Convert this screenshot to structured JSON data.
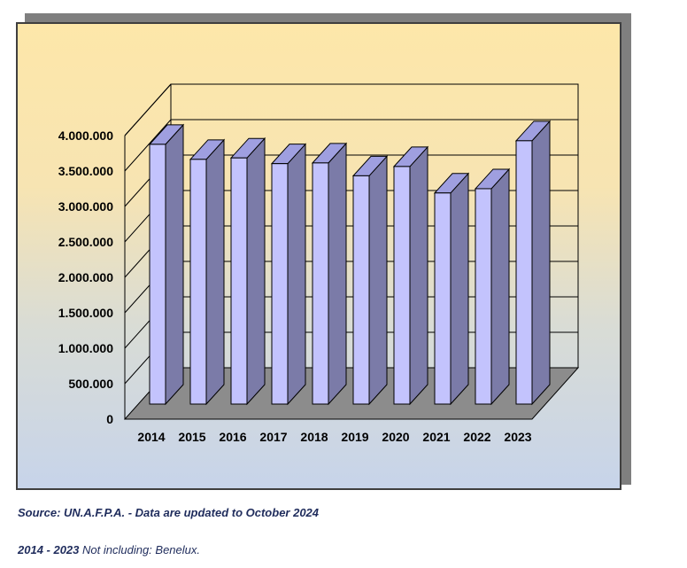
{
  "chart_data": {
    "type": "bar",
    "categories": [
      "2014",
      "2015",
      "2016",
      "2017",
      "2018",
      "2019",
      "2020",
      "2021",
      "2022",
      "2023"
    ],
    "values": [
      3630000,
      3420000,
      3440000,
      3360000,
      3370000,
      3190000,
      3320000,
      2950000,
      3010000,
      3680000
    ],
    "ylim": [
      0,
      4000000
    ],
    "yticks": [
      "0",
      "500.000",
      "1.000.000",
      "1.500.000",
      "2.000.000",
      "2.500.000",
      "3.000.000",
      "3.500.000",
      "4.000.000"
    ],
    "grid": true,
    "colors": {
      "front": "#c3c3fd",
      "side": "#7b7ba8",
      "top": "#9f9fe0",
      "floor": "#8c8c8c"
    }
  },
  "footer": {
    "source": "Source: UN.A.F.P.A. - Data are updated to October 2024",
    "note_years": "2014 - 2023",
    "note_text": " Not including: Benelux."
  }
}
